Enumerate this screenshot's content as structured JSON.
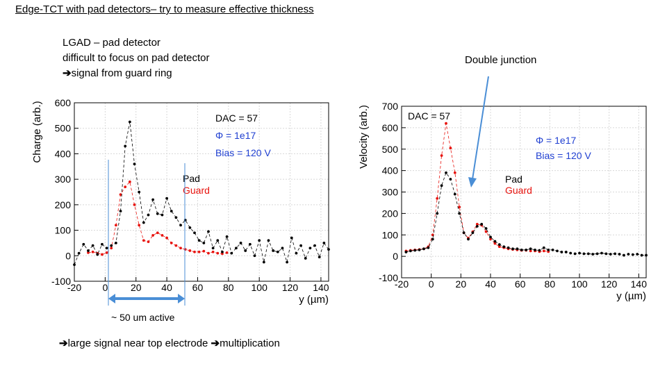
{
  "page": {
    "title": "Edge-TCT with pad detectors– try to measure effective thickness",
    "notes": [
      "LGAD – pad detector",
      "difficult to focus on pad detector",
      "signal from guard ring"
    ],
    "double_junction": "Double junction",
    "active_label": "~ 50 um active",
    "bottom_parts": [
      "large signal near top electrode",
      "multiplication"
    ]
  },
  "colors": {
    "pad": "#000000",
    "guard": "#e8140f",
    "phi": "#1f3fd1",
    "arrow": "#4a8ed6"
  },
  "chart_data": [
    {
      "type": "line",
      "ylabel": "Charge (arb.)",
      "xlabel": "y (µm)",
      "xlim": [
        -20,
        145
      ],
      "ylim": [
        -100,
        600
      ],
      "xticks": [
        -20,
        0,
        20,
        40,
        60,
        80,
        100,
        120,
        140
      ],
      "yticks": [
        600,
        500,
        400,
        300,
        200,
        100,
        0,
        -100
      ],
      "grid": true,
      "annotations": [
        "DAC = 57",
        "Φ = 1e17",
        "Bias = 120 V"
      ],
      "legend": [
        "Pad",
        "Guard"
      ],
      "series": [
        {
          "name": "Pad",
          "x": [
            -20,
            -17,
            -14,
            -11,
            -8,
            -5,
            -2,
            1,
            4,
            7,
            10,
            13,
            16,
            19,
            22,
            25,
            28,
            31,
            34,
            37,
            40,
            43,
            46,
            49,
            52,
            55,
            58,
            61,
            64,
            67,
            70,
            73,
            76,
            79,
            82,
            85,
            88,
            91,
            94,
            97,
            100,
            103,
            106,
            109,
            112,
            115,
            118,
            121,
            124,
            127,
            130,
            133,
            136,
            139,
            142,
            145
          ],
          "values": [
            -35,
            10,
            45,
            20,
            40,
            5,
            45,
            30,
            40,
            50,
            175,
            430,
            525,
            360,
            250,
            130,
            160,
            220,
            165,
            160,
            225,
            175,
            150,
            120,
            140,
            110,
            90,
            60,
            50,
            95,
            30,
            60,
            15,
            75,
            10,
            30,
            50,
            20,
            45,
            0,
            60,
            -25,
            60,
            20,
            15,
            30,
            -25,
            70,
            10,
            40,
            -10,
            30,
            40,
            -5,
            50,
            25
          ]
        },
        {
          "name": "Guard",
          "x": [
            -11,
            -8,
            -5,
            -2,
            1,
            4,
            7,
            10,
            13,
            16,
            19,
            22,
            25,
            28,
            31,
            34,
            37,
            40,
            43,
            46,
            49,
            52,
            55,
            58,
            61,
            64,
            67,
            70,
            73,
            76,
            79
          ],
          "values": [
            12,
            15,
            10,
            5,
            12,
            30,
            120,
            240,
            270,
            290,
            200,
            120,
            60,
            55,
            80,
            90,
            80,
            70,
            50,
            40,
            30,
            25,
            20,
            15,
            15,
            18,
            10,
            15,
            10,
            8,
            12
          ]
        }
      ]
    },
    {
      "type": "line",
      "ylabel": "Velocity (arb.)",
      "xlabel": "y (µm)",
      "xlim": [
        -20,
        145
      ],
      "ylim": [
        -100,
        700
      ],
      "xticks": [
        -20,
        0,
        20,
        40,
        60,
        80,
        100,
        120,
        140
      ],
      "yticks": [
        700,
        600,
        500,
        400,
        300,
        200,
        100,
        0,
        -100
      ],
      "grid": true,
      "annotations": [
        "DAC = 57",
        "Φ = 1e17",
        "Bias = 120 V"
      ],
      "legend": [
        "Pad",
        "Guard"
      ],
      "series": [
        {
          "name": "Pad",
          "x": [
            -17,
            -14,
            -11,
            -8,
            -5,
            -2,
            1,
            4,
            7,
            10,
            13,
            16,
            19,
            22,
            25,
            28,
            31,
            34,
            37,
            40,
            43,
            46,
            49,
            52,
            55,
            58,
            61,
            64,
            67,
            70,
            73,
            76,
            79,
            82,
            85,
            88,
            91,
            94,
            97,
            100,
            103,
            106,
            109,
            112,
            115,
            118,
            121,
            124,
            127,
            130,
            133,
            136,
            139,
            142,
            145
          ],
          "values": [
            20,
            25,
            28,
            30,
            35,
            40,
            80,
            200,
            330,
            390,
            360,
            290,
            200,
            110,
            80,
            110,
            140,
            150,
            130,
            90,
            70,
            55,
            45,
            40,
            35,
            35,
            30,
            30,
            35,
            30,
            28,
            40,
            30,
            30,
            25,
            20,
            20,
            15,
            12,
            15,
            12,
            12,
            10,
            12,
            15,
            12,
            10,
            12,
            10,
            5,
            10,
            8,
            10,
            5,
            5
          ]
        },
        {
          "name": "Guard",
          "x": [
            -17,
            -14,
            -11,
            -8,
            -5,
            -2,
            1,
            4,
            7,
            10,
            13,
            16,
            19,
            22,
            25,
            28,
            31,
            34,
            37,
            40,
            43,
            46,
            49,
            52,
            55,
            58,
            61,
            64,
            67,
            70,
            73,
            76,
            79
          ],
          "values": [
            25,
            28,
            30,
            32,
            35,
            45,
            100,
            270,
            470,
            620,
            505,
            390,
            230,
            110,
            85,
            115,
            150,
            145,
            115,
            80,
            60,
            45,
            40,
            35,
            32,
            30,
            28,
            28,
            25,
            25,
            22,
            25,
            22
          ]
        }
      ]
    }
  ]
}
